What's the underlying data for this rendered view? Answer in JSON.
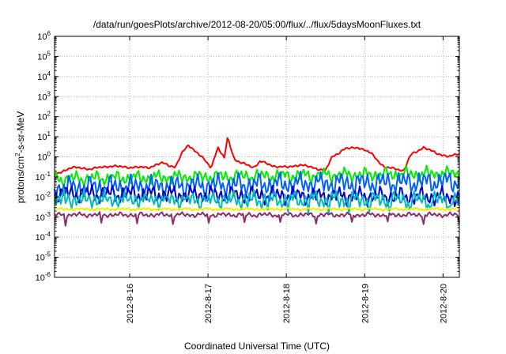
{
  "chart_data": {
    "type": "line",
    "title": "/data/run/goesPlots/archive/2012-08-20/05:00/flux/../flux/5daysMoonFluxes.txt",
    "xlabel": "Coordinated Universal Time (UTC)",
    "ylabel": {
      "prefix": "protons/cm",
      "sup": "2",
      "suffix": "-s-sr-MeV"
    },
    "y_scale": "log",
    "ylim": [
      1e-06,
      1000000.0
    ],
    "y_ticks": [
      {
        "base": "10",
        "exp": "6"
      },
      {
        "base": "10",
        "exp": "5"
      },
      {
        "base": "10",
        "exp": "4"
      },
      {
        "base": "10",
        "exp": "3"
      },
      {
        "base": "10",
        "exp": "2"
      },
      {
        "base": "10",
        "exp": "1"
      },
      {
        "base": "10",
        "exp": "0"
      },
      {
        "base": "10",
        "exp": "-1"
      },
      {
        "base": "10",
        "exp": "-2"
      },
      {
        "base": "10",
        "exp": "-3"
      },
      {
        "base": "10",
        "exp": "-4"
      },
      {
        "base": "10",
        "exp": "-5"
      },
      {
        "base": "10",
        "exp": "-6"
      }
    ],
    "xlim": [
      "2012-08-15 01:00",
      "2012-08-20 05:00"
    ],
    "x_ticks": [
      "2012-8-16",
      "2012-8-17",
      "2012-8-18",
      "2012-8-19",
      "2012-8-20"
    ],
    "grid": true,
    "series": [
      {
        "color": "#ff0000",
        "x": [
          "2012-08-15 01:00",
          "2012-08-15 06:00",
          "2012-08-15 12:00",
          "2012-08-15 18:00",
          "2012-08-16 00:00",
          "2012-08-16 06:00",
          "2012-08-16 10:00",
          "2012-08-16 14:00",
          "2012-08-16 16:00",
          "2012-08-16 18:00",
          "2012-08-16 22:00",
          "2012-08-17 01:00",
          "2012-08-17 03:00",
          "2012-08-17 05:00",
          "2012-08-17 06:00",
          "2012-08-17 08:00",
          "2012-08-17 10:00",
          "2012-08-17 12:00",
          "2012-08-17 14:00",
          "2012-08-17 16:00",
          "2012-08-17 20:00",
          "2012-08-18 00:00",
          "2012-08-18 04:00",
          "2012-08-18 08:00",
          "2012-08-18 12:00",
          "2012-08-18 14:00",
          "2012-08-18 18:00",
          "2012-08-18 22:00",
          "2012-08-19 02:00",
          "2012-08-19 06:00",
          "2012-08-19 10:00",
          "2012-08-19 12:00",
          "2012-08-19 14:00",
          "2012-08-19 18:00",
          "2012-08-19 22:00",
          "2012-08-20 02:00",
          "2012-08-20 05:00"
        ],
        "y": [
          0.12,
          0.3,
          0.25,
          0.35,
          0.3,
          0.3,
          0.5,
          0.3,
          1.5,
          4.0,
          1.0,
          0.3,
          3.0,
          0.8,
          10.0,
          0.8,
          0.5,
          0.4,
          0.3,
          0.6,
          0.35,
          0.3,
          0.4,
          0.3,
          0.2,
          1.0,
          2.5,
          3.0,
          1.5,
          0.3,
          0.25,
          0.2,
          1.2,
          3.0,
          1.5,
          1.0,
          1.5
        ]
      },
      {
        "color": "#00ee00",
        "x": [
          "2012-08-15 01:00",
          "2012-08-20 05:00"
        ],
        "y": [
          0.08,
          0.15
        ]
      },
      {
        "color": "#0060ff",
        "x": [
          "2012-08-15 01:00",
          "2012-08-20 05:00"
        ],
        "y": [
          0.03,
          0.06
        ]
      },
      {
        "color": "#0000cc",
        "x": [
          "2012-08-15 01:00",
          "2012-08-20 05:00"
        ],
        "y": [
          0.015,
          0.01
        ]
      },
      {
        "color": "#00bbbb",
        "x": [
          "2012-08-15 01:00",
          "2012-08-20 05:00"
        ],
        "y": [
          0.008,
          0.007
        ]
      },
      {
        "color": "#eeee00",
        "x": [
          "2012-08-15 01:00",
          "2012-08-20 05:00"
        ],
        "y": [
          0.0025,
          0.0025
        ]
      },
      {
        "color": "#8b2f6b",
        "x": [
          "2012-08-15 01:00",
          "2012-08-20 05:00"
        ],
        "y": [
          0.0013,
          0.0013
        ]
      }
    ]
  }
}
